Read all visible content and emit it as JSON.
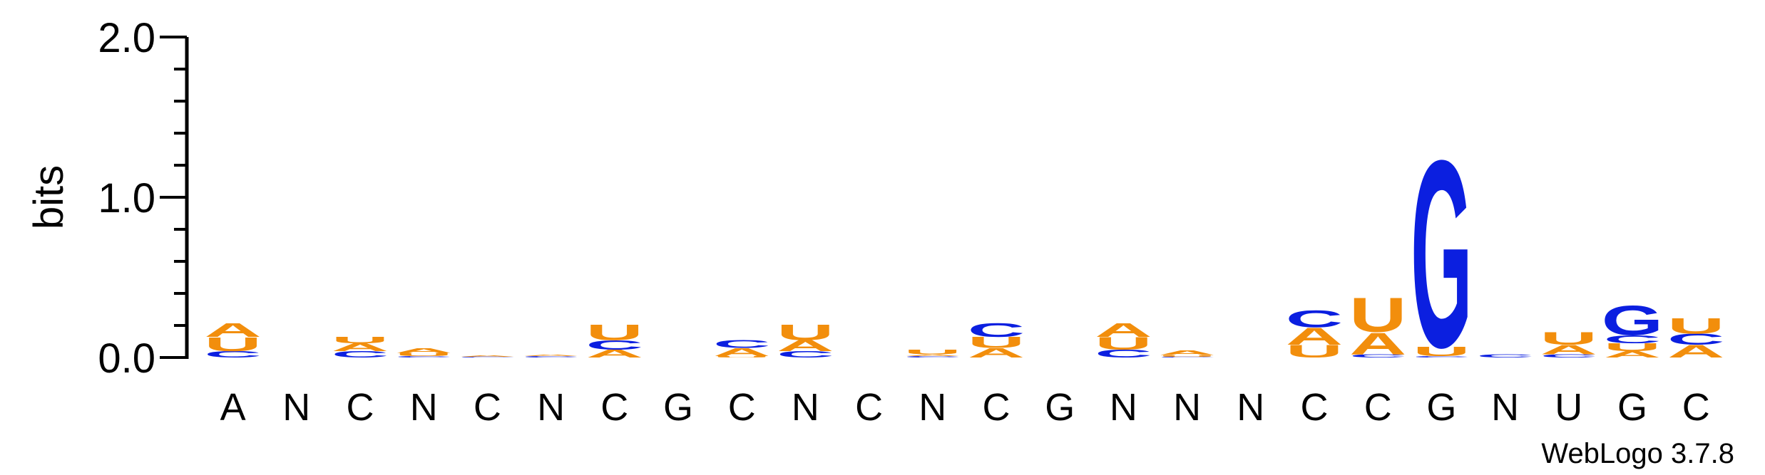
{
  "colors": {
    "A": "#f28e0c",
    "U": "#f28e0c",
    "C": "#0b1fe0",
    "G": "#0b1fe0",
    "axis": "#000000"
  },
  "chart_data": {
    "type": "sequence-logo",
    "title": "",
    "ylabel": "bits",
    "xlabel": "",
    "ylim": [
      0,
      2.0
    ],
    "yticks": [
      "0.0",
      "1.0",
      "2.0"
    ],
    "footer": "WebLogo 3.7.8",
    "positions": [
      {
        "label": "A",
        "stack": [
          {
            "l": "C",
            "h": 0.04
          },
          {
            "l": "U",
            "h": 0.09
          },
          {
            "l": "A",
            "h": 0.09
          }
        ]
      },
      {
        "label": "N",
        "stack": []
      },
      {
        "label": "C",
        "stack": [
          {
            "l": "C",
            "h": 0.04
          },
          {
            "l": "A",
            "h": 0.05
          },
          {
            "l": "U",
            "h": 0.04
          }
        ]
      },
      {
        "label": "N",
        "stack": [
          {
            "l": "C",
            "h": 0.01
          },
          {
            "l": "U",
            "h": 0.02
          },
          {
            "l": "A",
            "h": 0.03
          }
        ]
      },
      {
        "label": "C",
        "stack": [
          {
            "l": "C",
            "h": 0.005
          },
          {
            "l": "A",
            "h": 0.01
          }
        ]
      },
      {
        "label": "N",
        "stack": [
          {
            "l": "C",
            "h": 0.01
          },
          {
            "l": "A",
            "h": 0.01
          }
        ]
      },
      {
        "label": "C",
        "stack": [
          {
            "l": "A",
            "h": 0.05
          },
          {
            "l": "C",
            "h": 0.06
          },
          {
            "l": "U",
            "h": 0.1
          }
        ]
      },
      {
        "label": "G",
        "stack": []
      },
      {
        "label": "C",
        "stack": [
          {
            "l": "U",
            "h": 0.01
          },
          {
            "l": "A",
            "h": 0.05
          },
          {
            "l": "C",
            "h": 0.05
          }
        ]
      },
      {
        "label": "N",
        "stack": [
          {
            "l": "C",
            "h": 0.04
          },
          {
            "l": "A",
            "h": 0.07
          },
          {
            "l": "U",
            "h": 0.1
          }
        ]
      },
      {
        "label": "C",
        "stack": []
      },
      {
        "label": "N",
        "stack": [
          {
            "l": "C",
            "h": 0.01
          },
          {
            "l": "A",
            "h": 0.01
          },
          {
            "l": "U",
            "h": 0.03
          }
        ]
      },
      {
        "label": "C",
        "stack": [
          {
            "l": "A",
            "h": 0.06
          },
          {
            "l": "U",
            "h": 0.07
          },
          {
            "l": "C",
            "h": 0.09
          }
        ]
      },
      {
        "label": "G",
        "stack": []
      },
      {
        "label": "N",
        "stack": [
          {
            "l": "C",
            "h": 0.05
          },
          {
            "l": "U",
            "h": 0.08
          },
          {
            "l": "A",
            "h": 0.09
          }
        ]
      },
      {
        "label": "N",
        "stack": [
          {
            "l": "C",
            "h": 0.005
          },
          {
            "l": "U",
            "h": 0.01
          },
          {
            "l": "A",
            "h": 0.03
          }
        ]
      },
      {
        "label": "N",
        "stack": []
      },
      {
        "label": "C",
        "stack": [
          {
            "l": "U",
            "h": 0.08
          },
          {
            "l": "A",
            "h": 0.11
          },
          {
            "l": "C",
            "h": 0.11
          }
        ]
      },
      {
        "label": "C",
        "stack": [
          {
            "l": "C",
            "h": 0.02
          },
          {
            "l": "A",
            "h": 0.14
          },
          {
            "l": "U",
            "h": 0.22
          }
        ]
      },
      {
        "label": "G",
        "stack": [
          {
            "l": "C",
            "h": 0.01
          },
          {
            "l": "U",
            "h": 0.06
          },
          {
            "l": "G",
            "h": 1.2
          }
        ]
      },
      {
        "label": "N",
        "stack": [
          {
            "l": "C",
            "h": 0.02
          }
        ]
      },
      {
        "label": "U",
        "stack": [
          {
            "l": "C",
            "h": 0.02
          },
          {
            "l": "A",
            "h": 0.06
          },
          {
            "l": "U",
            "h": 0.08
          }
        ]
      },
      {
        "label": "G",
        "stack": [
          {
            "l": "A",
            "h": 0.04
          },
          {
            "l": "U",
            "h": 0.05
          },
          {
            "l": "C",
            "h": 0.05
          },
          {
            "l": "G",
            "h": 0.19
          }
        ]
      },
      {
        "label": "C",
        "stack": [
          {
            "l": "A",
            "h": 0.08
          },
          {
            "l": "C",
            "h": 0.07
          },
          {
            "l": "U",
            "h": 0.1
          }
        ]
      }
    ]
  }
}
